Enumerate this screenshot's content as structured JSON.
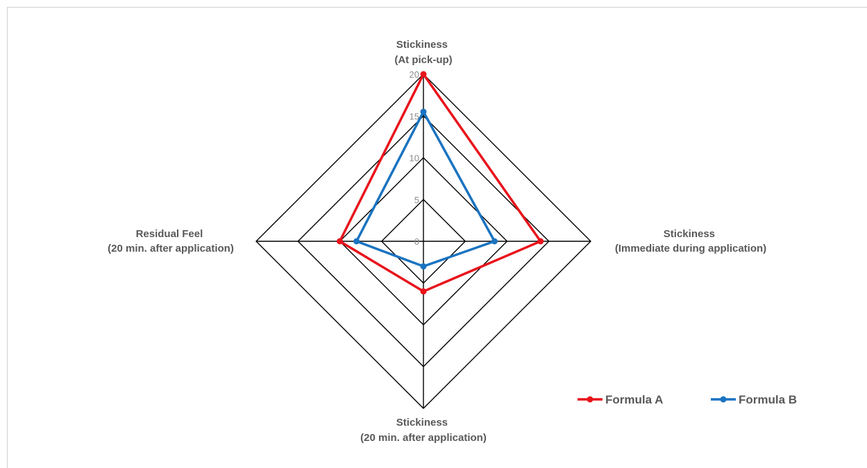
{
  "chart_data": {
    "type": "radar",
    "title": "",
    "axes": [
      {
        "label_lines": [
          "Stickiness",
          "(At pick-up)"
        ]
      },
      {
        "label_lines": [
          "Stickiness",
          "(Immediate during application)"
        ]
      },
      {
        "label_lines": [
          "Stickiness",
          "(20 min. after application)"
        ]
      },
      {
        "label_lines": [
          "Residual Feel",
          "(20 min. after application)"
        ]
      }
    ],
    "rlim": [
      0,
      20
    ],
    "ticks": [
      "0",
      "5",
      "10",
      "15",
      "20"
    ],
    "tick_values": [
      0,
      5,
      10,
      15,
      20
    ],
    "series": [
      {
        "name": "Formula A",
        "color": "#e8141b",
        "values": [
          20,
          14,
          6,
          10
        ]
      },
      {
        "name": "Formula B",
        "color": "#1a73c0",
        "values": [
          15.5,
          8.5,
          3,
          8
        ]
      }
    ],
    "grid": true,
    "grid_color": "#000000",
    "legend_position": "bottom-right"
  }
}
